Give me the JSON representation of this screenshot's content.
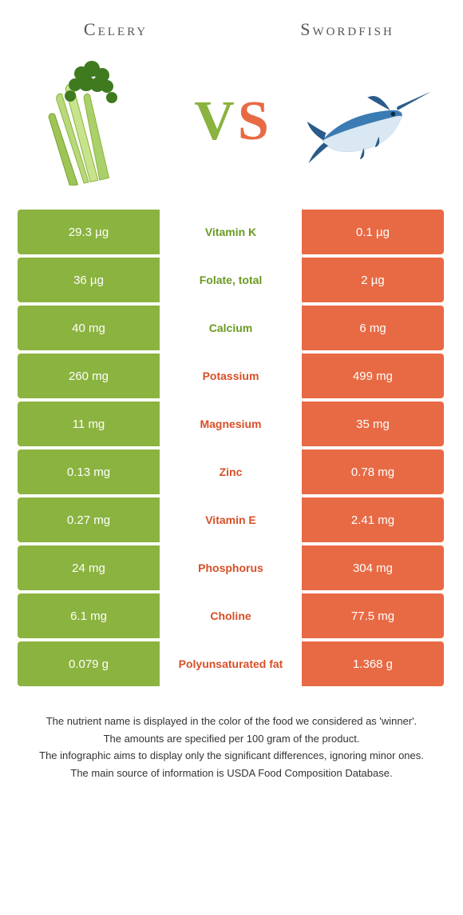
{
  "left": {
    "name": "Celery",
    "color": "#8bb33f"
  },
  "right": {
    "name": "Swordfish",
    "color": "#e86a44"
  },
  "vs": {
    "v": "V",
    "s": "S"
  },
  "colors": {
    "left_cell": "#8bb33f",
    "right_cell": "#e86a44",
    "label_left_win": "#6a9a20",
    "label_right_win": "#d84f27"
  },
  "rows": [
    {
      "nutrient": "Vitamin K",
      "left": "29.3 µg",
      "right": "0.1 µg",
      "winner": "left"
    },
    {
      "nutrient": "Folate, total",
      "left": "36 µg",
      "right": "2 µg",
      "winner": "left"
    },
    {
      "nutrient": "Calcium",
      "left": "40 mg",
      "right": "6 mg",
      "winner": "left"
    },
    {
      "nutrient": "Potassium",
      "left": "260 mg",
      "right": "499 mg",
      "winner": "right"
    },
    {
      "nutrient": "Magnesium",
      "left": "11 mg",
      "right": "35 mg",
      "winner": "right"
    },
    {
      "nutrient": "Zinc",
      "left": "0.13 mg",
      "right": "0.78 mg",
      "winner": "right"
    },
    {
      "nutrient": "Vitamin E",
      "left": "0.27 mg",
      "right": "2.41 mg",
      "winner": "right"
    },
    {
      "nutrient": "Phosphorus",
      "left": "24 mg",
      "right": "304 mg",
      "winner": "right"
    },
    {
      "nutrient": "Choline",
      "left": "6.1 mg",
      "right": "77.5 mg",
      "winner": "right"
    },
    {
      "nutrient": "Polyunsaturated fat",
      "left": "0.079 g",
      "right": "1.368 g",
      "winner": "right"
    }
  ],
  "footer": {
    "l1": "The nutrient name is displayed in the color of the food we considered as 'winner'.",
    "l2": "The amounts are specified per 100 gram of the product.",
    "l3": "The infographic aims to display only the significant differences, ignoring minor ones.",
    "l4": "The main source of information is USDA Food Composition Database."
  }
}
